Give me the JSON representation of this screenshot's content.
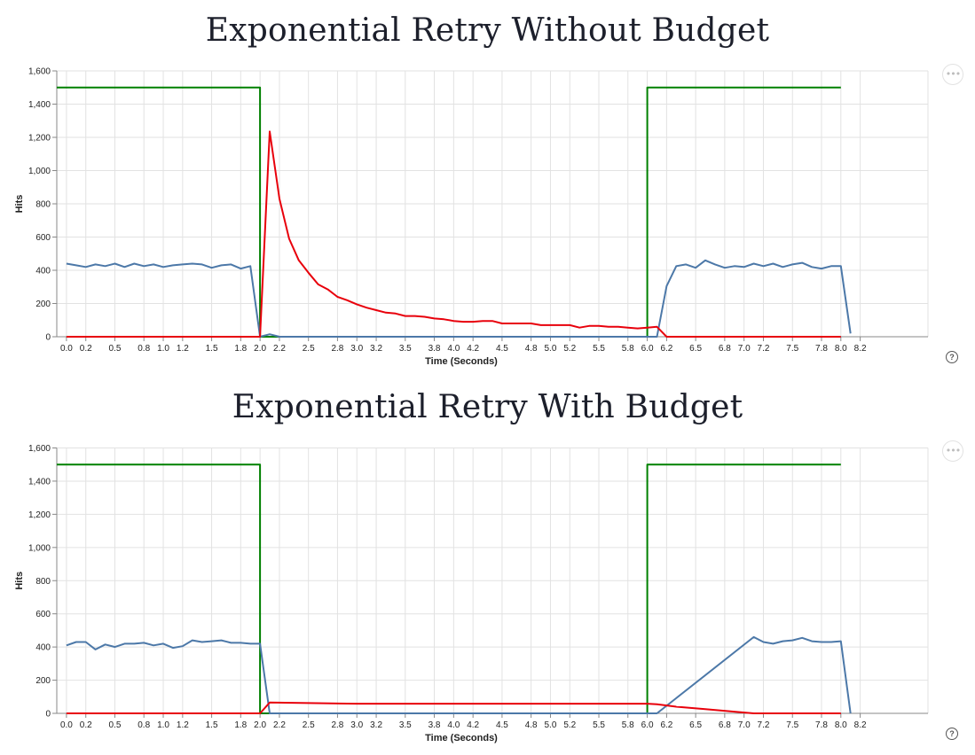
{
  "chart_data": [
    {
      "type": "line",
      "title": "Exponential Retry Without Budget",
      "xlabel": "Time (Seconds)",
      "ylabel": "Hits",
      "xlim": [
        -0.1,
        8.9
      ],
      "ylim": [
        0,
        1600
      ],
      "x_ticks": [
        0.0,
        0.2,
        0.5,
        0.8,
        1.0,
        1.2,
        1.5,
        1.8,
        2.0,
        2.2,
        2.5,
        2.8,
        3.0,
        3.2,
        3.5,
        3.8,
        4.0,
        4.2,
        4.5,
        4.8,
        5.0,
        5.2,
        5.5,
        5.8,
        6.0,
        6.2,
        6.5,
        6.8,
        7.0,
        7.2,
        7.5,
        7.8,
        8.0,
        8.2
      ],
      "x_tick_labels": [
        "0.0",
        "0.2",
        "0.5",
        "0.8",
        "1.0",
        "1.2",
        "1.5",
        "1.8",
        "2.0",
        "2.2",
        "2.5",
        "2.8",
        "3.0",
        "3.2",
        "3.5",
        "3.8",
        "4.0",
        "4.2",
        "4.5",
        "4.8",
        "5.0",
        "5.2",
        "5.5",
        "5.8",
        "6.0",
        "6.2",
        "6.5",
        "6.8",
        "7.0",
        "7.2",
        "7.5",
        "7.8",
        "8.0",
        "8.2"
      ],
      "y_ticks": [
        0,
        200,
        400,
        600,
        800,
        1000,
        1200,
        1400,
        1600
      ],
      "y_tick_labels": [
        "0",
        "200",
        "400",
        "600",
        "800",
        "1,000",
        "1,200",
        "1,400",
        "1,600"
      ],
      "grid": true,
      "series": [
        {
          "color": "#008000",
          "x": [
            -0.1,
            2.0,
            2.0,
            6.0,
            6.0,
            8.0
          ],
          "y": [
            1500,
            1500,
            0,
            0,
            1500,
            1500
          ]
        },
        {
          "color": "#4c78a8",
          "x": [
            0.0,
            0.1,
            0.2,
            0.3,
            0.4,
            0.5,
            0.6,
            0.7,
            0.8,
            0.9,
            1.0,
            1.1,
            1.2,
            1.3,
            1.4,
            1.5,
            1.6,
            1.7,
            1.8,
            1.9,
            2.0,
            2.1,
            2.2,
            6.1,
            6.2,
            6.3,
            6.4,
            6.5,
            6.6,
            6.7,
            6.8,
            6.9,
            7.0,
            7.1,
            7.2,
            7.3,
            7.4,
            7.5,
            7.6,
            7.7,
            7.8,
            7.9,
            8.0,
            8.1
          ],
          "y": [
            440,
            430,
            420,
            435,
            425,
            440,
            420,
            440,
            425,
            435,
            420,
            430,
            435,
            440,
            435,
            415,
            430,
            435,
            410,
            425,
            0,
            15,
            0,
            0,
            305,
            425,
            435,
            415,
            460,
            435,
            415,
            425,
            420,
            440,
            425,
            440,
            420,
            435,
            445,
            420,
            410,
            425,
            425,
            20
          ]
        },
        {
          "color": "#e8000b",
          "x": [
            0.0,
            2.0,
            2.1,
            2.2,
            2.3,
            2.4,
            2.5,
            2.6,
            2.7,
            2.8,
            2.9,
            3.0,
            3.1,
            3.2,
            3.3,
            3.4,
            3.5,
            3.6,
            3.7,
            3.8,
            3.9,
            4.0,
            4.1,
            4.2,
            4.3,
            4.4,
            4.5,
            4.6,
            4.7,
            4.8,
            4.9,
            5.0,
            5.1,
            5.2,
            5.3,
            5.4,
            5.5,
            5.6,
            5.7,
            5.8,
            5.9,
            6.0,
            6.1,
            6.2,
            8.0
          ],
          "y": [
            0,
            0,
            1235,
            830,
            590,
            460,
            385,
            315,
            285,
            240,
            220,
            195,
            175,
            160,
            145,
            140,
            125,
            125,
            120,
            110,
            105,
            95,
            90,
            90,
            95,
            95,
            80,
            80,
            80,
            80,
            70,
            70,
            70,
            70,
            55,
            65,
            65,
            60,
            60,
            55,
            50,
            55,
            60,
            0,
            0
          ]
        }
      ]
    },
    {
      "type": "line",
      "title": "Exponential Retry With Budget",
      "xlabel": "Time (Seconds)",
      "ylabel": "Hits",
      "xlim": [
        -0.1,
        8.9
      ],
      "ylim": [
        0,
        1600
      ],
      "x_ticks": [
        0.0,
        0.2,
        0.5,
        0.8,
        1.0,
        1.2,
        1.5,
        1.8,
        2.0,
        2.2,
        2.5,
        2.8,
        3.0,
        3.2,
        3.5,
        3.8,
        4.0,
        4.2,
        4.5,
        4.8,
        5.0,
        5.2,
        5.5,
        5.8,
        6.0,
        6.2,
        6.5,
        6.8,
        7.0,
        7.2,
        7.5,
        7.8,
        8.0,
        8.2
      ],
      "x_tick_labels": [
        "0.0",
        "0.2",
        "0.5",
        "0.8",
        "1.0",
        "1.2",
        "1.5",
        "1.8",
        "2.0",
        "2.2",
        "2.5",
        "2.8",
        "3.0",
        "3.2",
        "3.5",
        "3.8",
        "4.0",
        "4.2",
        "4.5",
        "4.8",
        "5.0",
        "5.2",
        "5.5",
        "5.8",
        "6.0",
        "6.2",
        "6.5",
        "6.8",
        "7.0",
        "7.2",
        "7.5",
        "7.8",
        "8.0",
        "8.2"
      ],
      "y_ticks": [
        0,
        200,
        400,
        600,
        800,
        1000,
        1200,
        1400,
        1600
      ],
      "y_tick_labels": [
        "0",
        "200",
        "400",
        "600",
        "800",
        "1,000",
        "1,200",
        "1,400",
        "1,600"
      ],
      "grid": true,
      "series": [
        {
          "color": "#008000",
          "x": [
            -0.1,
            2.0,
            2.0,
            6.0,
            6.0,
            8.0
          ],
          "y": [
            1500,
            1500,
            0,
            0,
            1500,
            1500
          ]
        },
        {
          "color": "#4c78a8",
          "x": [
            0.0,
            0.1,
            0.2,
            0.3,
            0.4,
            0.5,
            0.6,
            0.7,
            0.8,
            0.9,
            1.0,
            1.1,
            1.2,
            1.3,
            1.4,
            1.5,
            1.6,
            1.7,
            1.8,
            1.9,
            2.0,
            2.1,
            6.1,
            7.1,
            7.2,
            7.3,
            7.4,
            7.5,
            7.6,
            7.7,
            7.8,
            7.9,
            8.0,
            8.1
          ],
          "y": [
            410,
            430,
            430,
            385,
            415,
            400,
            420,
            420,
            425,
            410,
            420,
            395,
            405,
            440,
            430,
            435,
            440,
            425,
            425,
            420,
            420,
            0,
            0,
            460,
            430,
            420,
            435,
            440,
            455,
            435,
            430,
            430,
            435,
            0
          ]
        },
        {
          "color": "#e8000b",
          "x": [
            0.0,
            2.0,
            2.1,
            2.5,
            3.0,
            3.5,
            4.0,
            4.5,
            5.0,
            5.5,
            6.0,
            6.1,
            6.3,
            6.6,
            6.9,
            7.1,
            8.0
          ],
          "y": [
            0,
            0,
            65,
            62,
            58,
            58,
            58,
            58,
            58,
            58,
            58,
            55,
            40,
            25,
            10,
            0,
            0
          ]
        }
      ]
    }
  ]
}
